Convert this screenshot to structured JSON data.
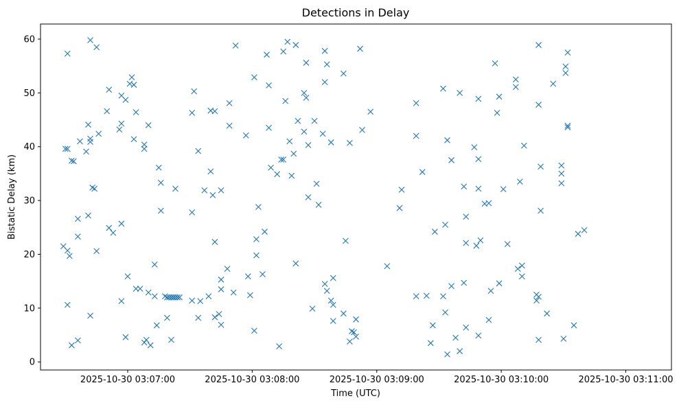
{
  "chart_data": {
    "type": "scatter",
    "title": "Detections in Delay",
    "xlabel": "Time (UTC)",
    "ylabel": "Bistatic Delay (km)",
    "x_ticks": [
      {
        "value": "2025-10-30 03:07:00",
        "label": "2025-10-30 03:07:00"
      },
      {
        "value": "2025-10-30 03:08:00",
        "label": "2025-10-30 03:08:00"
      },
      {
        "value": "2025-10-30 03:09:00",
        "label": "2025-10-30 03:09:00"
      },
      {
        "value": "2025-10-30 03:10:00",
        "label": "2025-10-30 03:10:00"
      },
      {
        "value": "2025-10-30 03:11:00",
        "label": "2025-10-30 03:11:00"
      }
    ],
    "y_ticks": [
      0,
      10,
      20,
      30,
      40,
      50,
      60
    ],
    "xlim": [
      "2025-10-30 03:06:18",
      "2025-10-30 03:11:22"
    ],
    "ylim": [
      -1.5,
      62.8
    ],
    "marker": "x",
    "color": "#1f77b4",
    "grid": false,
    "legend": "none",
    "points": [
      [
        "2025-10-30 03:06:29",
        21.5
      ],
      [
        "2025-10-30 03:06:30",
        39.6
      ],
      [
        "2025-10-30 03:06:31",
        39.6
      ],
      [
        "2025-10-30 03:06:31",
        20.7
      ],
      [
        "2025-10-30 03:06:32",
        19.7
      ],
      [
        "2025-10-30 03:06:31",
        10.6
      ],
      [
        "2025-10-30 03:06:31",
        57.3
      ],
      [
        "2025-10-30 03:06:33",
        37.4
      ],
      [
        "2025-10-30 03:06:34",
        37.3
      ],
      [
        "2025-10-30 03:06:33",
        3.1
      ],
      [
        "2025-10-30 03:06:36",
        4.0
      ],
      [
        "2025-10-30 03:06:36",
        26.6
      ],
      [
        "2025-10-30 03:06:36",
        23.3
      ],
      [
        "2025-10-30 03:06:37",
        41.0
      ],
      [
        "2025-10-30 03:06:40",
        39.1
      ],
      [
        "2025-10-30 03:06:41",
        44.1
      ],
      [
        "2025-10-30 03:06:41",
        27.2
      ],
      [
        "2025-10-30 03:06:42",
        41.5
      ],
      [
        "2025-10-30 03:06:42",
        40.9
      ],
      [
        "2025-10-30 03:06:42",
        8.6
      ],
      [
        "2025-10-30 03:06:42",
        59.8
      ],
      [
        "2025-10-30 03:06:43",
        32.4
      ],
      [
        "2025-10-30 03:06:44",
        32.2
      ],
      [
        "2025-10-30 03:06:45",
        58.5
      ],
      [
        "2025-10-30 03:06:45",
        20.6
      ],
      [
        "2025-10-30 03:06:46",
        42.4
      ],
      [
        "2025-10-30 03:06:50",
        46.6
      ],
      [
        "2025-10-30 03:06:51",
        24.9
      ],
      [
        "2025-10-30 03:06:51",
        50.6
      ],
      [
        "2025-10-30 03:06:53",
        24.0
      ],
      [
        "2025-10-30 03:06:56",
        43.2
      ],
      [
        "2025-10-30 03:06:57",
        11.3
      ],
      [
        "2025-10-30 03:06:57",
        25.7
      ],
      [
        "2025-10-30 03:06:57",
        49.5
      ],
      [
        "2025-10-30 03:06:57",
        44.3
      ],
      [
        "2025-10-30 03:06:59",
        4.6
      ],
      [
        "2025-10-30 03:06:59",
        48.7
      ],
      [
        "2025-10-30 03:07:00",
        15.9
      ],
      [
        "2025-10-30 03:07:01",
        51.7
      ],
      [
        "2025-10-30 03:07:02",
        52.9
      ],
      [
        "2025-10-30 03:07:03",
        51.5
      ],
      [
        "2025-10-30 03:07:03",
        41.4
      ],
      [
        "2025-10-30 03:07:04",
        46.4
      ],
      [
        "2025-10-30 03:07:04",
        13.6
      ],
      [
        "2025-10-30 03:07:06",
        13.6
      ],
      [
        "2025-10-30 03:07:08",
        40.4
      ],
      [
        "2025-10-30 03:07:08",
        39.6
      ],
      [
        "2025-10-30 03:07:08",
        3.6
      ],
      [
        "2025-10-30 03:07:09",
        4.1
      ],
      [
        "2025-10-30 03:07:10",
        12.9
      ],
      [
        "2025-10-30 03:07:10",
        44.0
      ],
      [
        "2025-10-30 03:07:11",
        3.1
      ],
      [
        "2025-10-30 03:07:13",
        18.1
      ],
      [
        "2025-10-30 03:07:13",
        12.2
      ],
      [
        "2025-10-30 03:07:14",
        6.8
      ],
      [
        "2025-10-30 03:07:15",
        36.1
      ],
      [
        "2025-10-30 03:07:16",
        28.1
      ],
      [
        "2025-10-30 03:07:16",
        33.3
      ],
      [
        "2025-10-30 03:07:18",
        12.2
      ],
      [
        "2025-10-30 03:07:19",
        8.2
      ],
      [
        "2025-10-30 03:07:19",
        12.0
      ],
      [
        "2025-10-30 03:07:20",
        12.0
      ],
      [
        "2025-10-30 03:07:21",
        12.0
      ],
      [
        "2025-10-30 03:07:21",
        4.1
      ],
      [
        "2025-10-30 03:07:22",
        12.0
      ],
      [
        "2025-10-30 03:07:22",
        12.0
      ],
      [
        "2025-10-30 03:07:23",
        32.2
      ],
      [
        "2025-10-30 03:07:23",
        12.0
      ],
      [
        "2025-10-30 03:07:24",
        12.0
      ],
      [
        "2025-10-30 03:07:25",
        12.0
      ],
      [
        "2025-10-30 03:07:31",
        11.4
      ],
      [
        "2025-10-30 03:07:31",
        27.8
      ],
      [
        "2025-10-30 03:07:31",
        46.3
      ],
      [
        "2025-10-30 03:07:32",
        50.3
      ],
      [
        "2025-10-30 03:07:34",
        39.2
      ],
      [
        "2025-10-30 03:07:34",
        8.2
      ],
      [
        "2025-10-30 03:07:35",
        11.3
      ],
      [
        "2025-10-30 03:07:37",
        31.9
      ],
      [
        "2025-10-30 03:07:39",
        12.2
      ],
      [
        "2025-10-30 03:07:40",
        35.4
      ],
      [
        "2025-10-30 03:07:40",
        46.7
      ],
      [
        "2025-10-30 03:07:41",
        31.0
      ],
      [
        "2025-10-30 03:07:42",
        46.6
      ],
      [
        "2025-10-30 03:07:42",
        22.3
      ],
      [
        "2025-10-30 03:07:42",
        8.3
      ],
      [
        "2025-10-30 03:07:44",
        8.9
      ],
      [
        "2025-10-30 03:07:45",
        6.9
      ],
      [
        "2025-10-30 03:07:45",
        31.9
      ],
      [
        "2025-10-30 03:07:45",
        13.5
      ],
      [
        "2025-10-30 03:07:45",
        15.3
      ],
      [
        "2025-10-30 03:07:48",
        17.3
      ],
      [
        "2025-10-30 03:07:49",
        43.9
      ],
      [
        "2025-10-30 03:07:49",
        48.1
      ],
      [
        "2025-10-30 03:07:51",
        12.9
      ],
      [
        "2025-10-30 03:07:52",
        58.8
      ],
      [
        "2025-10-30 03:07:57",
        42.1
      ],
      [
        "2025-10-30 03:07:58",
        15.9
      ],
      [
        "2025-10-30 03:07:59",
        12.4
      ],
      [
        "2025-10-30 03:08:01",
        5.8
      ],
      [
        "2025-10-30 03:08:01",
        52.9
      ],
      [
        "2025-10-30 03:08:02",
        22.8
      ],
      [
        "2025-10-30 03:08:03",
        28.8
      ],
      [
        "2025-10-30 03:08:02",
        19.8
      ],
      [
        "2025-10-30 03:08:05",
        16.3
      ],
      [
        "2025-10-30 03:08:06",
        24.2
      ],
      [
        "2025-10-30 03:08:07",
        57.1
      ],
      [
        "2025-10-30 03:08:08",
        51.4
      ],
      [
        "2025-10-30 03:08:08",
        43.5
      ],
      [
        "2025-10-30 03:08:09",
        36.1
      ],
      [
        "2025-10-30 03:08:12",
        34.9
      ],
      [
        "2025-10-30 03:08:13",
        2.9
      ],
      [
        "2025-10-30 03:08:14",
        37.6
      ],
      [
        "2025-10-30 03:08:15",
        37.6
      ],
      [
        "2025-10-30 03:08:15",
        57.7
      ],
      [
        "2025-10-30 03:08:16",
        48.5
      ],
      [
        "2025-10-30 03:08:17",
        59.5
      ],
      [
        "2025-10-30 03:08:18",
        41.0
      ],
      [
        "2025-10-30 03:08:19",
        34.6
      ],
      [
        "2025-10-30 03:08:20",
        38.7
      ],
      [
        "2025-10-30 03:08:21",
        58.9
      ],
      [
        "2025-10-30 03:08:21",
        18.3
      ],
      [
        "2025-10-30 03:08:22",
        44.8
      ],
      [
        "2025-10-30 03:08:25",
        42.8
      ],
      [
        "2025-10-30 03:08:25",
        50.0
      ],
      [
        "2025-10-30 03:08:26",
        55.6
      ],
      [
        "2025-10-30 03:08:26",
        49.1
      ],
      [
        "2025-10-30 03:08:27",
        40.3
      ],
      [
        "2025-10-30 03:08:27",
        30.6
      ],
      [
        "2025-10-30 03:08:29",
        9.9
      ],
      [
        "2025-10-30 03:08:30",
        44.8
      ],
      [
        "2025-10-30 03:08:31",
        33.1
      ],
      [
        "2025-10-30 03:08:32",
        29.2
      ],
      [
        "2025-10-30 03:08:34",
        42.4
      ],
      [
        "2025-10-30 03:08:35",
        14.5
      ],
      [
        "2025-10-30 03:08:35",
        57.8
      ],
      [
        "2025-10-30 03:08:35",
        52.0
      ],
      [
        "2025-10-30 03:08:36",
        55.3
      ],
      [
        "2025-10-30 03:08:36",
        13.2
      ],
      [
        "2025-10-30 03:08:38",
        11.4
      ],
      [
        "2025-10-30 03:08:38",
        40.8
      ],
      [
        "2025-10-30 03:08:39",
        10.6
      ],
      [
        "2025-10-30 03:08:39",
        15.6
      ],
      [
        "2025-10-30 03:08:39",
        7.6
      ],
      [
        "2025-10-30 03:08:44",
        9.0
      ],
      [
        "2025-10-30 03:08:44",
        53.6
      ],
      [
        "2025-10-30 03:08:45",
        22.5
      ],
      [
        "2025-10-30 03:08:47",
        3.8
      ],
      [
        "2025-10-30 03:08:47",
        40.7
      ],
      [
        "2025-10-30 03:08:48",
        5.7
      ],
      [
        "2025-10-30 03:08:49",
        5.5
      ],
      [
        "2025-10-30 03:08:50",
        4.7
      ],
      [
        "2025-10-30 03:08:50",
        7.9
      ],
      [
        "2025-10-30 03:08:52",
        58.2
      ],
      [
        "2025-10-30 03:08:53",
        43.1
      ],
      [
        "2025-10-30 03:08:57",
        46.5
      ],
      [
        "2025-10-30 03:09:05",
        17.8
      ],
      [
        "2025-10-30 03:09:11",
        28.6
      ],
      [
        "2025-10-30 03:09:12",
        32.0
      ],
      [
        "2025-10-30 03:09:19",
        12.2
      ],
      [
        "2025-10-30 03:09:19",
        48.1
      ],
      [
        "2025-10-30 03:09:19",
        42.0
      ],
      [
        "2025-10-30 03:09:22",
        35.3
      ],
      [
        "2025-10-30 03:09:24",
        12.3
      ],
      [
        "2025-10-30 03:09:26",
        3.5
      ],
      [
        "2025-10-30 03:09:27",
        6.8
      ],
      [
        "2025-10-30 03:09:28",
        24.2
      ],
      [
        "2025-10-30 03:09:32",
        50.8
      ],
      [
        "2025-10-30 03:09:32",
        12.2
      ],
      [
        "2025-10-30 03:09:33",
        25.5
      ],
      [
        "2025-10-30 03:09:33",
        9.2
      ],
      [
        "2025-10-30 03:09:34",
        41.2
      ],
      [
        "2025-10-30 03:09:34",
        1.4
      ],
      [
        "2025-10-30 03:09:36",
        37.5
      ],
      [
        "2025-10-30 03:09:36",
        14.1
      ],
      [
        "2025-10-30 03:09:38",
        4.5
      ],
      [
        "2025-10-30 03:09:40",
        50.0
      ],
      [
        "2025-10-30 03:09:40",
        2.0
      ],
      [
        "2025-10-30 03:09:42",
        32.6
      ],
      [
        "2025-10-30 03:09:42",
        14.7
      ],
      [
        "2025-10-30 03:09:43",
        22.1
      ],
      [
        "2025-10-30 03:09:43",
        27.0
      ],
      [
        "2025-10-30 03:09:43",
        6.4
      ],
      [
        "2025-10-30 03:09:47",
        39.9
      ],
      [
        "2025-10-30 03:09:48",
        21.6
      ],
      [
        "2025-10-30 03:09:49",
        32.2
      ],
      [
        "2025-10-30 03:09:49",
        37.7
      ],
      [
        "2025-10-30 03:09:49",
        48.9
      ],
      [
        "2025-10-30 03:09:49",
        4.9
      ],
      [
        "2025-10-30 03:09:50",
        22.6
      ],
      [
        "2025-10-30 03:09:52",
        29.4
      ],
      [
        "2025-10-30 03:09:54",
        29.5
      ],
      [
        "2025-10-30 03:09:54",
        7.8
      ],
      [
        "2025-10-30 03:09:55",
        13.2
      ],
      [
        "2025-10-30 03:09:57",
        55.5
      ],
      [
        "2025-10-30 03:09:58",
        46.3
      ],
      [
        "2025-10-30 03:09:59",
        14.6
      ],
      [
        "2025-10-30 03:09:59",
        49.3
      ],
      [
        "2025-10-30 03:10:01",
        32.1
      ],
      [
        "2025-10-30 03:10:03",
        21.9
      ],
      [
        "2025-10-30 03:10:07",
        52.5
      ],
      [
        "2025-10-30 03:10:07",
        51.1
      ],
      [
        "2025-10-30 03:10:08",
        17.3
      ],
      [
        "2025-10-30 03:10:09",
        33.5
      ],
      [
        "2025-10-30 03:10:10",
        17.9
      ],
      [
        "2025-10-30 03:10:10",
        15.9
      ],
      [
        "2025-10-30 03:10:11",
        40.2
      ],
      [
        "2025-10-30 03:10:17",
        11.4
      ],
      [
        "2025-10-30 03:10:17",
        12.5
      ],
      [
        "2025-10-30 03:10:18",
        58.9
      ],
      [
        "2025-10-30 03:10:18",
        47.8
      ],
      [
        "2025-10-30 03:10:18",
        12.1
      ],
      [
        "2025-10-30 03:10:18",
        4.1
      ],
      [
        "2025-10-30 03:10:19",
        28.1
      ],
      [
        "2025-10-30 03:10:19",
        36.3
      ],
      [
        "2025-10-30 03:10:22",
        9.0
      ],
      [
        "2025-10-30 03:10:25",
        51.7
      ],
      [
        "2025-10-30 03:10:29",
        36.5
      ],
      [
        "2025-10-30 03:10:29",
        35.0
      ],
      [
        "2025-10-30 03:10:29",
        33.2
      ],
      [
        "2025-10-30 03:10:30",
        4.3
      ],
      [
        "2025-10-30 03:10:31",
        53.7
      ],
      [
        "2025-10-30 03:10:31",
        54.9
      ],
      [
        "2025-10-30 03:10:32",
        57.5
      ],
      [
        "2025-10-30 03:10:32",
        43.9
      ],
      [
        "2025-10-30 03:10:32",
        43.6
      ],
      [
        "2025-10-30 03:10:35",
        6.8
      ],
      [
        "2025-10-30 03:10:37",
        23.8
      ],
      [
        "2025-10-30 03:10:40",
        24.5
      ]
    ]
  }
}
